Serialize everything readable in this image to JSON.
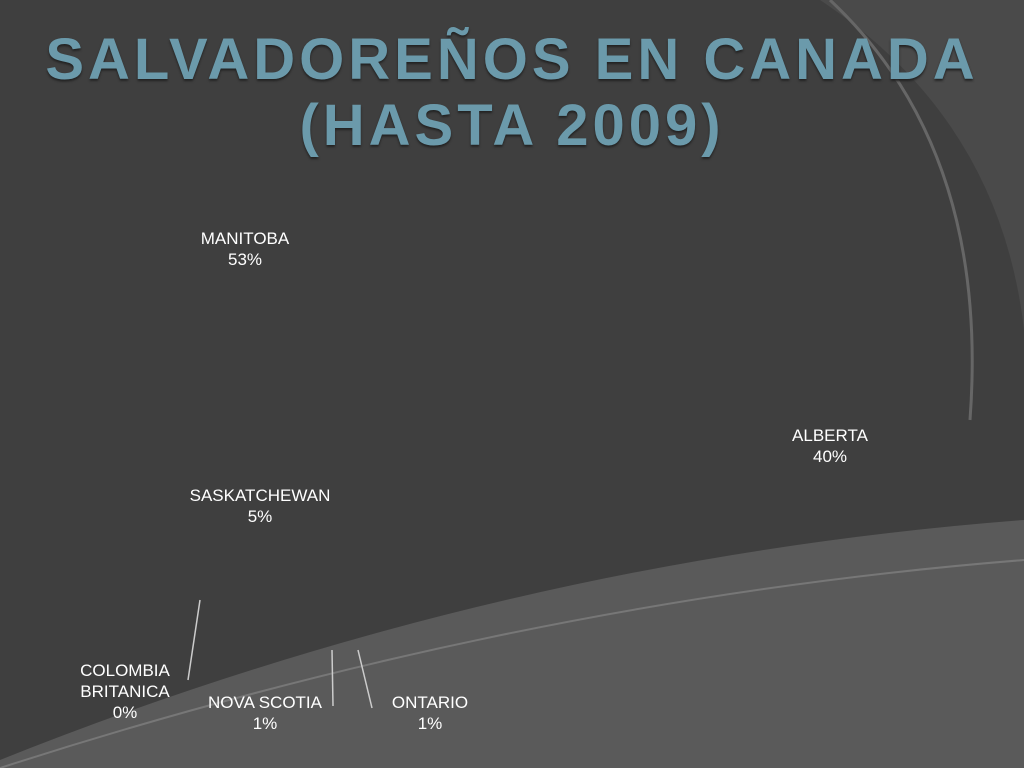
{
  "chart_data": {
    "type": "pie3d",
    "title": [
      "SALVADOREÑOS EN CANADA",
      "(HASTA 2009)"
    ],
    "categories": [
      "ALBERTA",
      "ONTARIO",
      "NOVA SCOTIA",
      "SASKATCHEWAN",
      "COLOMBIA BRITANICA",
      "MANITOBA"
    ],
    "values": [
      40,
      1,
      1,
      5,
      0,
      53
    ],
    "value_labels": [
      "40%",
      "1%",
      "1%",
      "5%",
      "0%",
      "53%"
    ],
    "colors": [
      "#b39a08",
      "#6c6a8c",
      "#4f5f40",
      "#877b63",
      "#7f9aa8",
      "#5f8fa0"
    ]
  }
}
